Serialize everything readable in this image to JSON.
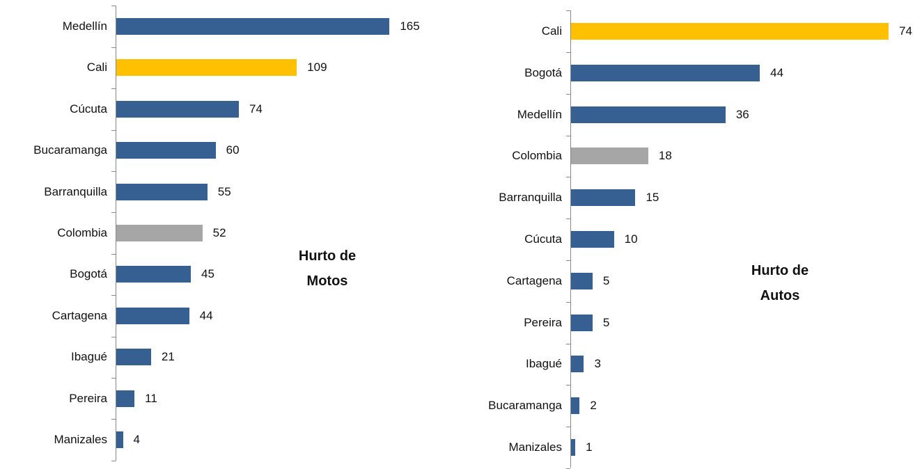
{
  "chart_data": [
    {
      "type": "bar",
      "orientation": "horizontal",
      "title": "Hurto de Motos",
      "categories": [
        "Medellín",
        "Cali",
        "Cúcuta",
        "Bucaramanga",
        "Barranquilla",
        "Colombia",
        "Bogotá",
        "Cartagena",
        "Ibagué",
        "Pereira",
        "Manizales"
      ],
      "values": [
        165,
        109,
        74,
        60,
        55,
        52,
        45,
        44,
        21,
        11,
        4
      ],
      "colors": [
        "#376092",
        "#ffc000",
        "#376092",
        "#376092",
        "#376092",
        "#a6a6a6",
        "#376092",
        "#376092",
        "#376092",
        "#376092",
        "#376092"
      ],
      "xlim": [
        0,
        180
      ]
    },
    {
      "type": "bar",
      "orientation": "horizontal",
      "title": "Hurto de Autos",
      "categories": [
        "Cali",
        "Bogotá",
        "Medellín",
        "Colombia",
        "Barranquilla",
        "Cúcuta",
        "Cartagena",
        "Pereira",
        "Ibagué",
        "Bucaramanga",
        "Manizales"
      ],
      "values": [
        74,
        44,
        36,
        18,
        15,
        10,
        5,
        5,
        3,
        2,
        1
      ],
      "colors": [
        "#ffc000",
        "#376092",
        "#376092",
        "#a6a6a6",
        "#376092",
        "#376092",
        "#376092",
        "#376092",
        "#376092",
        "#376092",
        "#376092"
      ],
      "xlim": [
        0,
        80
      ]
    }
  ]
}
